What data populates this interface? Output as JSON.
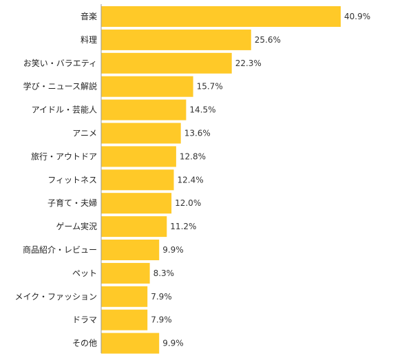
{
  "chart_data": {
    "type": "bar",
    "orientation": "horizontal",
    "categories": [
      "音楽",
      "料理",
      "お笑い・バラエティ",
      "学び・ニュース解説",
      "アイドル・芸能人",
      "アニメ",
      "旅行・アウトドア",
      "フィットネス",
      "子育て・夫婦",
      "ゲーム実況",
      "商品紹介・レビュー",
      "ペット",
      "メイク・ファッション",
      "ドラマ",
      "その他"
    ],
    "values": [
      40.9,
      25.6,
      22.3,
      15.7,
      14.5,
      13.6,
      12.8,
      12.4,
      12.0,
      11.2,
      9.9,
      8.3,
      7.9,
      7.9,
      9.9
    ],
    "value_labels": [
      "40.9%",
      "25.6%",
      "22.3%",
      "15.7%",
      "14.5%",
      "13.6%",
      "12.8%",
      "12.4%",
      "12.0%",
      "11.2%",
      "9.9%",
      "8.3%",
      "7.9%",
      "7.9%",
      "9.9%"
    ],
    "unit": "%",
    "xlim": [
      0,
      40.9
    ],
    "grid": false,
    "bar_color": "#FFC928",
    "axis_color": "#999999"
  }
}
